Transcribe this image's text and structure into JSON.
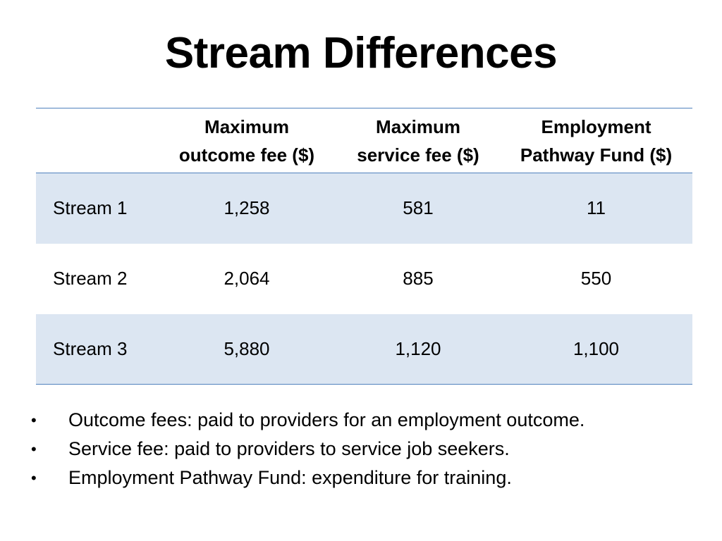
{
  "title": "Stream Differences",
  "table": {
    "headers": [
      "",
      "Maximum outcome fee ($)",
      "Maximum service fee ($)",
      "Employment Pathway Fund ($)"
    ],
    "header_lines": [
      [],
      [
        "Maximum",
        "outcome fee ($)"
      ],
      [
        "Maximum",
        "service fee ($)"
      ],
      [
        "Employment",
        "Pathway Fund ($)"
      ]
    ],
    "rows": [
      {
        "label": "Stream 1",
        "outcome_fee": "1,258",
        "service_fee": "581",
        "pathway_fund": "11"
      },
      {
        "label": "Stream 2",
        "outcome_fee": "2,064",
        "service_fee": "885",
        "pathway_fund": "550"
      },
      {
        "label": "Stream 3",
        "outcome_fee": "5,880",
        "service_fee": "1,120",
        "pathway_fund": "1,100"
      }
    ]
  },
  "notes": [
    "Outcome fees: paid to providers for an employment outcome.",
    "Service fee: paid to providers to service job seekers.",
    "Employment Pathway Fund: expenditure for training."
  ],
  "bullet_glyph": "•",
  "colors": {
    "rule": "#4f81bd",
    "band": "#dce6f2"
  }
}
